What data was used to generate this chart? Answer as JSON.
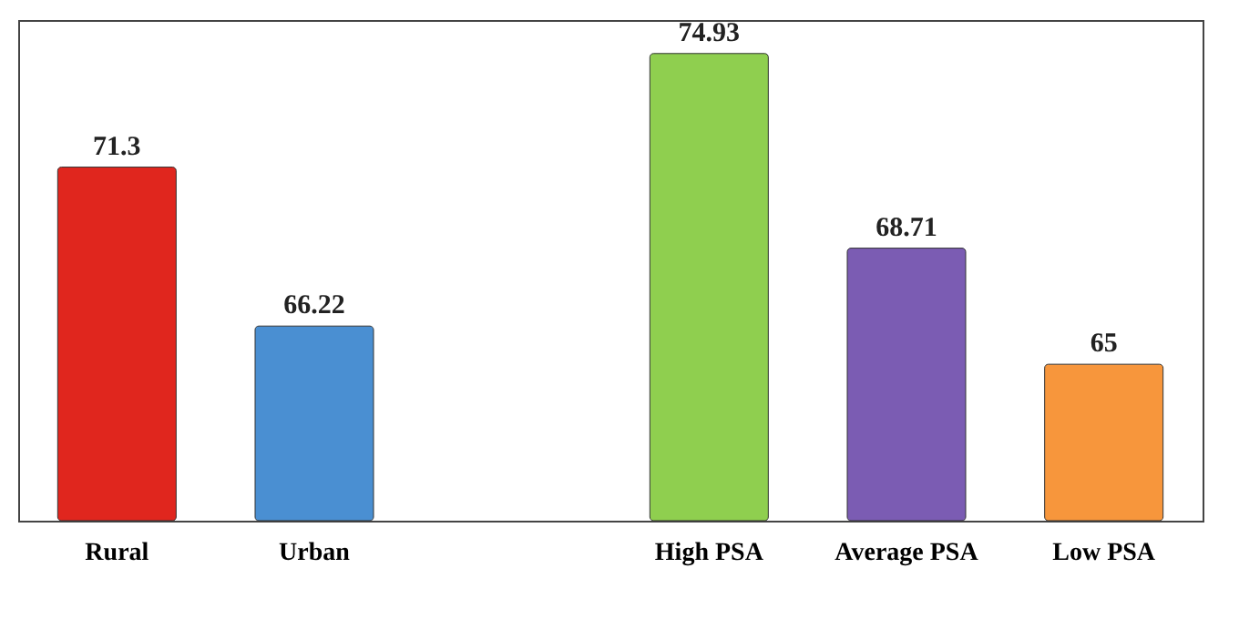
{
  "chart_data": {
    "type": "bar",
    "categories": [
      "Rural",
      "Urban",
      null,
      "High PSA",
      "Average PSA",
      "Low PSA"
    ],
    "values": [
      71.3,
      66.22,
      null,
      74.93,
      68.71,
      65
    ],
    "colors": [
      "#e0261e",
      "#4a8fd2",
      null,
      "#8fcf4f",
      "#7b5cb3",
      "#f7963c"
    ],
    "ylim": [
      60,
      76
    ],
    "data_labels": true,
    "tick_labels": "x"
  }
}
